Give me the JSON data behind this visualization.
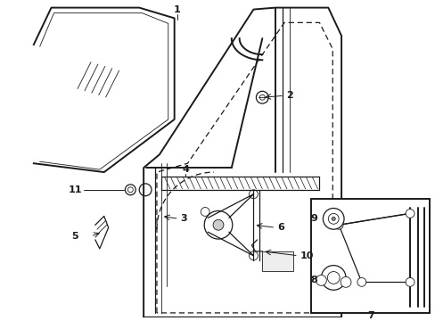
{
  "bg_color": "#ffffff",
  "line_color": "#1a1a1a",
  "lw_thick": 1.4,
  "lw_med": 0.9,
  "lw_thin": 0.6,
  "fs_label": 8.0
}
